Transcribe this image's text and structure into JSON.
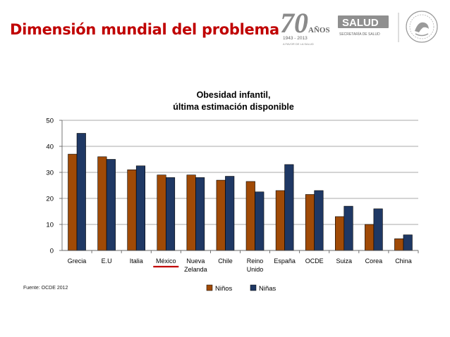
{
  "slide": {
    "title": "Dimensión mundial del problema",
    "source": "Fuente: OCDE 2012"
  },
  "logos": {
    "anniversary": {
      "number": "70",
      "word": "AÑOS",
      "years": "1943 - 2013",
      "tagline": "A FAVOR DE LA SALUD"
    },
    "ministry": {
      "name": "SALUD",
      "subtitle": "SECRETARÍA DE SALUD"
    },
    "seal_icon": "mexican-eagle-seal-icon"
  },
  "chart_data": {
    "type": "bar",
    "title_lines": [
      "Obesidad infantil,",
      "última estimación disponible"
    ],
    "categories": [
      [
        "Grecia"
      ],
      [
        "E.U"
      ],
      [
        "Italia"
      ],
      [
        "México"
      ],
      [
        "Nueva",
        "Zelanda"
      ],
      [
        "Chile"
      ],
      [
        "Reino",
        "Unido"
      ],
      [
        "España"
      ],
      [
        "OCDE"
      ],
      [
        "Suiza"
      ],
      [
        "Corea"
      ],
      [
        "China"
      ]
    ],
    "highlighted_category": "México",
    "series": [
      {
        "name": "Niños",
        "values": [
          37,
          36,
          31,
          29,
          29,
          27,
          26.5,
          23,
          21.5,
          13,
          10,
          4.5
        ]
      },
      {
        "name": "Niñas",
        "values": [
          45,
          35,
          32.5,
          28,
          28,
          28.5,
          22.5,
          33,
          23,
          17,
          16,
          6
        ]
      }
    ],
    "ylim": [
      0,
      50
    ],
    "yticks": [
      0,
      10,
      20,
      30,
      40,
      50
    ],
    "grid": true,
    "legend": "bottom",
    "colors": {
      "ninos": "#a04a06",
      "ninas": "#1f3864",
      "highlight": "#c00000"
    }
  }
}
